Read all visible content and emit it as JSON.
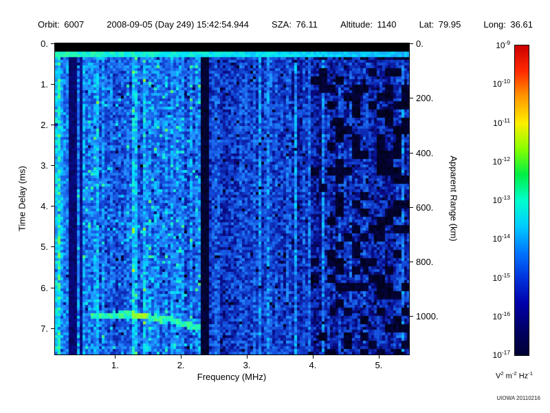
{
  "header": {
    "fields": [
      {
        "label": "Orbit:",
        "value": "6007"
      },
      {
        "label": "",
        "value": "2008-09-05 (Day 249) 15:42:54.944"
      },
      {
        "label": "SZA:",
        "value": "76.11"
      },
      {
        "label": "Altitude:",
        "value": "1140"
      },
      {
        "label": "Lat:",
        "value": "79.95"
      },
      {
        "label": "Long:",
        "value": "36.61"
      }
    ]
  },
  "chart_data": {
    "type": "heatmap",
    "title": "",
    "xlabel": "Frequency (MHz)",
    "ylabel": "Time Delay (ms)",
    "y2label": "Apparent Range (km)",
    "x_range": [
      0.09,
      5.46
    ],
    "y_range": [
      0,
      7.65
    ],
    "y2_range": [
      0,
      1140
    ],
    "x_ticks": [
      {
        "v": 1,
        "label": "1."
      },
      {
        "v": 2,
        "label": "2."
      },
      {
        "v": 3,
        "label": "3."
      },
      {
        "v": 4,
        "label": "4."
      },
      {
        "v": 5,
        "label": "5."
      }
    ],
    "y_ticks": [
      {
        "v": 0,
        "label": "0."
      },
      {
        "v": 1,
        "label": "1."
      },
      {
        "v": 2,
        "label": "2."
      },
      {
        "v": 3,
        "label": "3."
      },
      {
        "v": 4,
        "label": "4."
      },
      {
        "v": 5,
        "label": "5."
      },
      {
        "v": 6,
        "label": "6."
      },
      {
        "v": 7,
        "label": "7."
      }
    ],
    "y2_ticks": [
      {
        "v": 0,
        "label": "0."
      },
      {
        "v": 200,
        "label": "200."
      },
      {
        "v": 400,
        "label": "400."
      },
      {
        "v": 600,
        "label": "600."
      },
      {
        "v": 800,
        "label": "800."
      },
      {
        "v": 1000,
        "label": "1000."
      }
    ],
    "colorbar": {
      "scale_mantissa": "10",
      "tick_exponents": [
        "-9",
        "-10",
        "-11",
        "-12",
        "-13",
        "-14",
        "-15",
        "-16",
        "-17"
      ],
      "unit_parts": [
        {
          "base": "V",
          "exp": "2"
        },
        {
          "base": "m",
          "exp": "-2"
        },
        {
          "base": "Hz",
          "exp": "-1"
        }
      ],
      "colors": [
        "#cc0000",
        "#ff2a00",
        "#ff9900",
        "#ffee00",
        "#88ff00",
        "#00ee44",
        "#00ffcc",
        "#00ccff",
        "#0077ff",
        "#0033dd",
        "#0000aa",
        "#000066",
        "#000033"
      ]
    },
    "features": {
      "description": "Radar sounder ionogram: blue noise background; black band at top; cyan surface-echo line near 0.3 ms; dark vertical bands near 0.38, 0.47 and 2.37 MHz; bright column near 1.32 MHz; cyan-green ionospheric echo trace from 0.62 to 2.32 MHz at 6.7-7.0 ms delay; dark patches above 4 MHz",
      "top_band_ms": [
        0,
        0.22
      ],
      "surface_echo_ms": [
        0.22,
        0.34
      ],
      "dark_band_mhz": {
        "center": 0.36,
        "half_width": 0.045
      },
      "dark_band2_mhz": {
        "center": 0.47,
        "half_width": 0.025
      },
      "black_band_mhz": {
        "center": 2.37,
        "half_width": 0.05
      },
      "bright_column_mhz": {
        "center": 1.32,
        "half_width": 0.04
      },
      "echo_trace": {
        "f_start": 0.62,
        "f_end": 2.32,
        "d_flat": 6.68,
        "f_bend": 1.4,
        "slope_ms_per_mhz": 0.33
      },
      "dark_patch_f_min": 3.95,
      "seed": 20110216
    }
  },
  "credit": "UIOWA 20110216"
}
